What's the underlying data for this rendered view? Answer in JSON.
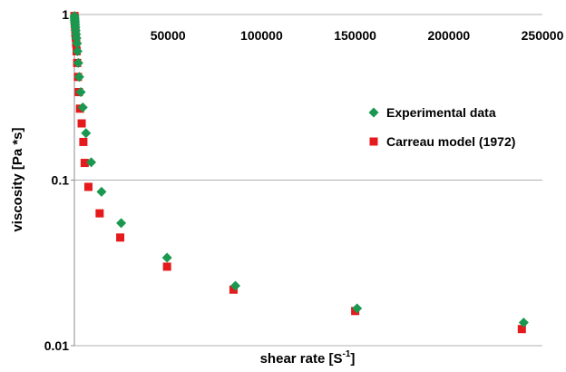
{
  "chart_data": {
    "type": "scatter",
    "title": "",
    "xlabel": "shear rate [S",
    "xlabel_sup": "-1",
    "xlabel_end": "]",
    "ylabel": "viscosity [Pa *s]",
    "xlim": [
      0,
      250000
    ],
    "ylim": [
      0.01,
      1
    ],
    "y_scale": "log",
    "x_ticks": [
      0,
      50000,
      100000,
      150000,
      200000,
      250000
    ],
    "x_tick_labels": [
      "0",
      "50000",
      "100000",
      "150000",
      "200000",
      "250000"
    ],
    "x_axis_position": "top",
    "y_ticks": [
      1,
      0.1,
      0.01
    ],
    "y_tick_labels": [
      "1",
      "0.1",
      "0.01"
    ],
    "grid": "horizontal",
    "legend_position": "right",
    "series": [
      {
        "name": "Experimental data",
        "marker": "diamond",
        "color": "#1a9850",
        "points": [
          [
            60,
            0.98
          ],
          [
            100,
            0.96
          ],
          [
            150,
            0.94
          ],
          [
            220,
            0.92
          ],
          [
            300,
            0.9
          ],
          [
            400,
            0.87
          ],
          [
            550,
            0.84
          ],
          [
            700,
            0.8
          ],
          [
            900,
            0.76
          ],
          [
            1100,
            0.72
          ],
          [
            1400,
            0.67
          ],
          [
            1700,
            0.6
          ],
          [
            2100,
            0.51
          ],
          [
            2600,
            0.42
          ],
          [
            3400,
            0.34
          ],
          [
            4500,
            0.275
          ],
          [
            6200,
            0.192
          ],
          [
            9000,
            0.128
          ],
          [
            14500,
            0.085
          ],
          [
            25000,
            0.055
          ],
          [
            49500,
            0.034
          ],
          [
            86000,
            0.023
          ],
          [
            151000,
            0.0168
          ],
          [
            240000,
            0.0138
          ]
        ]
      },
      {
        "name": "Carreau model (1972)",
        "marker": "square",
        "color": "#e41a1c",
        "points": [
          [
            40,
            0.98
          ],
          [
            70,
            0.96
          ],
          [
            110,
            0.94
          ],
          [
            160,
            0.92
          ],
          [
            230,
            0.9
          ],
          [
            300,
            0.88
          ],
          [
            380,
            0.85
          ],
          [
            480,
            0.82
          ],
          [
            600,
            0.78
          ],
          [
            750,
            0.73
          ],
          [
            950,
            0.67
          ],
          [
            1200,
            0.6
          ],
          [
            1500,
            0.51
          ],
          [
            1900,
            0.42
          ],
          [
            2400,
            0.34
          ],
          [
            3000,
            0.27
          ],
          [
            3900,
            0.22
          ],
          [
            4800,
            0.17
          ],
          [
            5500,
            0.127
          ],
          [
            7500,
            0.091
          ],
          [
            13500,
            0.063
          ],
          [
            24500,
            0.045
          ],
          [
            49500,
            0.03
          ],
          [
            85000,
            0.0218
          ],
          [
            150000,
            0.0162
          ],
          [
            239000,
            0.0126
          ]
        ]
      }
    ]
  }
}
